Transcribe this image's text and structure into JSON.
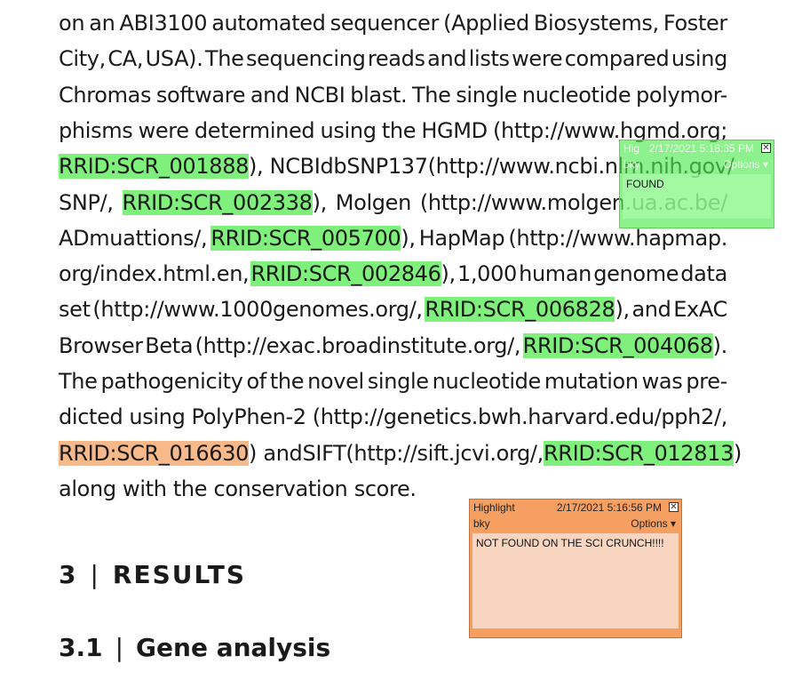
{
  "lines": [
    [
      "on",
      "an",
      "ABI3100",
      "automated",
      "sequencer",
      "(Applied",
      "Biosystems,",
      "Foster"
    ],
    [
      "City,",
      "CA,",
      "USA).",
      "The",
      "sequencing",
      "reads",
      "and",
      "lists",
      "were",
      "compared",
      "using"
    ],
    [
      "Chromas",
      "software",
      "and",
      "NCBI",
      "blast.",
      "The",
      "single",
      "nucleotide",
      "polymor-"
    ],
    [
      "phisms",
      "were",
      "determined",
      "using",
      "the",
      "HGMD",
      "(http://www.hgmd.org;"
    ],
    [
      "RRID:SCR_001888",
      "), NCBI",
      "dbSNP137",
      "(http://www.ncbi.nlm.nih.gov/"
    ],
    [
      "SNP/,",
      "RRID:SCR_002338",
      "),",
      "Molgen",
      "(http://www.molgen.ua.ac.be/"
    ],
    [
      "ADmuattions/,",
      "RRID:SCR_005700",
      "),",
      "HapMap",
      "(http://www.hapmap."
    ],
    [
      "org/index.html.en,",
      "RRID:SCR_002846",
      "),",
      "1,000",
      "human",
      "genome",
      "data"
    ],
    [
      "set",
      "(http://www.1000genomes.org/,",
      "RRID:SCR_006828",
      "),",
      "and",
      "ExAC"
    ],
    [
      "Browser",
      "Beta",
      "(http://exac.broadinstitute.org/,",
      "RRID:SCR_004068",
      ")."
    ],
    [
      "The",
      "pathogenicity",
      "of",
      "the",
      "novel",
      "single",
      "nucleotide",
      "mutation",
      "was",
      "pre-"
    ],
    [
      "dicted",
      "using",
      "PolyPhen-2",
      "(http://genetics.bwh.harvard.edu/pph2/,"
    ],
    [
      "RRID:SCR_016630",
      ") and",
      "SIFT",
      "(http://sift.jcvi.org/,",
      "RRID:SCR_012813",
      ")"
    ],
    [
      "along",
      "with",
      "the",
      "conservation",
      "score."
    ]
  ],
  "highlights": {
    "RRID:SCR_001888": "green",
    "RRID:SCR_002338": "green",
    "RRID:SCR_005700": "green",
    "RRID:SCR_002846": "green",
    "RRID:SCR_006828": "green",
    "RRID:SCR_004068": "green",
    "RRID:SCR_016630": "orange",
    "RRID:SCR_012813": "green"
  },
  "section": {
    "number": "3",
    "title": "RESULTS"
  },
  "subsection": {
    "number": "3.1",
    "title": "Gene analysis"
  },
  "separator": "|",
  "note_green": {
    "title": "Hig",
    "timestamp": "2/17/2021 5:18:35 PM",
    "author": "bky",
    "options_label": "Options",
    "body": "FOUND",
    "color": "#50eb50"
  },
  "note_orange": {
    "title": "Highlight",
    "timestamp": "2/17/2021 5:16:56 PM",
    "author": "bky",
    "options_label": "Options",
    "body": "NOT FOUND ON THE SCI CRUNCH!!!!",
    "color": "#f5a060"
  }
}
